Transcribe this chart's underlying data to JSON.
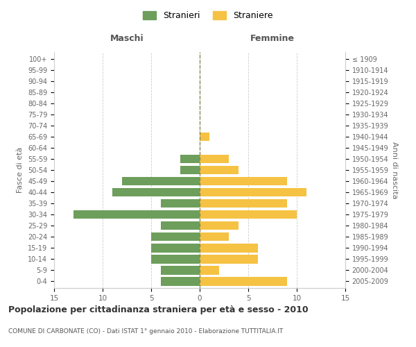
{
  "age_groups": [
    "0-4",
    "5-9",
    "10-14",
    "15-19",
    "20-24",
    "25-29",
    "30-34",
    "35-39",
    "40-44",
    "45-49",
    "50-54",
    "55-59",
    "60-64",
    "65-69",
    "70-74",
    "75-79",
    "80-84",
    "85-89",
    "90-94",
    "95-99",
    "100+"
  ],
  "birth_years": [
    "2005-2009",
    "2000-2004",
    "1995-1999",
    "1990-1994",
    "1985-1989",
    "1980-1984",
    "1975-1979",
    "1970-1974",
    "1965-1969",
    "1960-1964",
    "1955-1959",
    "1950-1954",
    "1945-1949",
    "1940-1944",
    "1935-1939",
    "1930-1934",
    "1925-1929",
    "1920-1924",
    "1915-1919",
    "1910-1914",
    "≤ 1909"
  ],
  "maschi": [
    4,
    4,
    5,
    5,
    5,
    4,
    13,
    4,
    9,
    8,
    2,
    2,
    0,
    0,
    0,
    0,
    0,
    0,
    0,
    0,
    0
  ],
  "femmine": [
    9,
    2,
    6,
    6,
    3,
    4,
    10,
    9,
    11,
    9,
    4,
    3,
    0,
    1,
    0,
    0,
    0,
    0,
    0,
    0,
    0
  ],
  "maschi_color": "#6d9e5b",
  "femmine_color": "#f5c243",
  "background_color": "#ffffff",
  "grid_color": "#cccccc",
  "title": "Popolazione per cittadinanza straniera per età e sesso - 2010",
  "subtitle": "COMUNE DI CARBONATE (CO) - Dati ISTAT 1° gennaio 2010 - Elaborazione TUTTITALIA.IT",
  "legend_maschi": "Stranieri",
  "legend_femmine": "Straniere",
  "xlabel_left": "Maschi",
  "xlabel_right": "Femmine",
  "ylabel_left": "Fasce di età",
  "ylabel_right": "Anni di nascita",
  "xlim": 15
}
